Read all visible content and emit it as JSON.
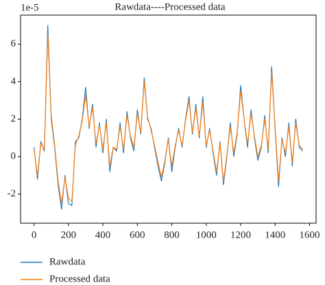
{
  "chart_data": {
    "type": "line",
    "title": "Rawdata----Processed data",
    "y_offset_label": "1e-5",
    "x": [
      0,
      20,
      40,
      60,
      80,
      100,
      120,
      140,
      160,
      180,
      200,
      220,
      240,
      260,
      280,
      300,
      320,
      340,
      360,
      380,
      400,
      420,
      440,
      460,
      480,
      500,
      520,
      540,
      560,
      580,
      600,
      620,
      640,
      660,
      680,
      700,
      720,
      740,
      760,
      780,
      800,
      820,
      840,
      860,
      880,
      900,
      920,
      940,
      960,
      980,
      1000,
      1020,
      1040,
      1060,
      1080,
      1100,
      1120,
      1140,
      1160,
      1180,
      1200,
      1220,
      1240,
      1260,
      1280,
      1300,
      1320,
      1340,
      1360,
      1380,
      1400,
      1420,
      1440,
      1460,
      1480,
      1500,
      1520,
      1540,
      1560
    ],
    "series": [
      {
        "name": "Rawdata",
        "color": "#1f77b4",
        "values": [
          0.5,
          -1.2,
          0.8,
          0.3,
          7.0,
          2.0,
          0.5,
          -1.5,
          -2.8,
          -1.0,
          -2.5,
          -2.6,
          0.8,
          1.0,
          2.0,
          3.7,
          1.5,
          2.8,
          0.5,
          1.8,
          0.2,
          2.0,
          -0.8,
          0.5,
          0.3,
          1.8,
          0.2,
          2.4,
          1.0,
          0.3,
          2.5,
          1.2,
          4.2,
          2.0,
          1.5,
          0.5,
          -0.5,
          -1.3,
          -0.3,
          1.0,
          -0.8,
          0.5,
          1.5,
          0.5,
          2.0,
          3.2,
          1.2,
          2.8,
          1.0,
          3.2,
          0.5,
          1.5,
          0.2,
          -1.0,
          0.8,
          -1.5,
          0.0,
          1.8,
          0.0,
          1.2,
          3.8,
          2.0,
          0.5,
          2.5,
          1.0,
          -0.2,
          0.5,
          2.2,
          0.2,
          4.8,
          1.5,
          -1.6,
          1.0,
          0.0,
          1.8,
          -0.5,
          2.0,
          0.5,
          0.3
        ]
      },
      {
        "name": "Processed data",
        "color": "#ff7f0e",
        "values": [
          0.4,
          -1.0,
          0.7,
          0.4,
          6.5,
          2.2,
          0.6,
          -1.3,
          -2.5,
          -1.1,
          -2.2,
          -2.4,
          0.6,
          1.1,
          1.9,
          3.3,
          1.6,
          2.6,
          0.7,
          1.7,
          0.4,
          1.8,
          -0.5,
          0.5,
          0.4,
          1.6,
          0.4,
          2.2,
          1.1,
          0.5,
          2.3,
          1.3,
          4.0,
          2.1,
          1.4,
          0.6,
          -0.3,
          -1.1,
          -0.2,
          0.9,
          -0.5,
          0.6,
          1.4,
          0.6,
          1.9,
          3.0,
          1.3,
          2.6,
          1.1,
          2.9,
          0.6,
          1.4,
          0.3,
          -0.8,
          0.7,
          -1.3,
          0.1,
          1.6,
          0.2,
          1.3,
          3.5,
          2.0,
          0.7,
          2.3,
          1.1,
          0.0,
          0.6,
          2.0,
          0.4,
          4.5,
          1.6,
          -1.3,
          0.9,
          0.2,
          1.6,
          -0.3,
          1.8,
          0.6,
          0.4
        ]
      }
    ],
    "xlim": [
      -78,
      1638
    ],
    "xticks": [
      0,
      200,
      400,
      600,
      800,
      1000,
      1200,
      1400,
      1600
    ],
    "ylim": [
      -3.55,
      7.55
    ],
    "yticks": [
      -2,
      0,
      2,
      4,
      6
    ],
    "legend": "below"
  }
}
